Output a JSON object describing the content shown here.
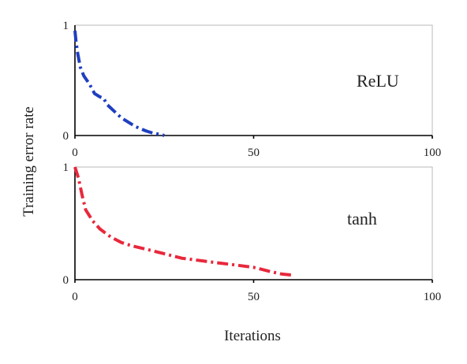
{
  "chart_data": {
    "shared": {
      "ylabel": "Training error rate",
      "xlabel": "Iterations"
    },
    "panels": [
      {
        "type": "line",
        "series_label": "ReLU",
        "color": "#1f3fbf",
        "line_style": "dash-dot",
        "xlim": [
          0,
          100
        ],
        "ylim": [
          0,
          1
        ],
        "x_ticks": [
          "0",
          "50",
          "100"
        ],
        "y_ticks": [
          "0",
          "1"
        ],
        "grid": false,
        "points": [
          [
            0.0,
            0.95
          ],
          [
            0.3,
            0.85
          ],
          [
            0.8,
            0.74
          ],
          [
            1.5,
            0.62
          ],
          [
            2.5,
            0.54
          ],
          [
            4,
            0.47
          ],
          [
            5.5,
            0.38
          ],
          [
            7,
            0.35
          ],
          [
            8,
            0.34
          ],
          [
            9,
            0.28
          ],
          [
            11,
            0.22
          ],
          [
            13,
            0.16
          ],
          [
            15,
            0.12
          ],
          [
            17,
            0.08
          ],
          [
            20,
            0.04
          ],
          [
            22,
            0.02
          ],
          [
            24,
            0.01
          ],
          [
            25,
            0.0
          ]
        ]
      },
      {
        "type": "line",
        "series_label": "tanh",
        "color": "#e8283c",
        "line_style": "dash-dot",
        "xlim": [
          0,
          100
        ],
        "ylim": [
          0,
          1
        ],
        "x_ticks": [
          "0",
          "50",
          "100"
        ],
        "y_ticks": [
          "0",
          "1"
        ],
        "grid": false,
        "points": [
          [
            0.0,
            1.0
          ],
          [
            1,
            0.9
          ],
          [
            2,
            0.75
          ],
          [
            3,
            0.62
          ],
          [
            5,
            0.52
          ],
          [
            7,
            0.45
          ],
          [
            10,
            0.38
          ],
          [
            13,
            0.33
          ],
          [
            16,
            0.3
          ],
          [
            20,
            0.27
          ],
          [
            25,
            0.23
          ],
          [
            30,
            0.19
          ],
          [
            35,
            0.17
          ],
          [
            40,
            0.15
          ],
          [
            45,
            0.13
          ],
          [
            50,
            0.11
          ],
          [
            55,
            0.07
          ],
          [
            58,
            0.05
          ],
          [
            61,
            0.04
          ]
        ]
      }
    ]
  }
}
